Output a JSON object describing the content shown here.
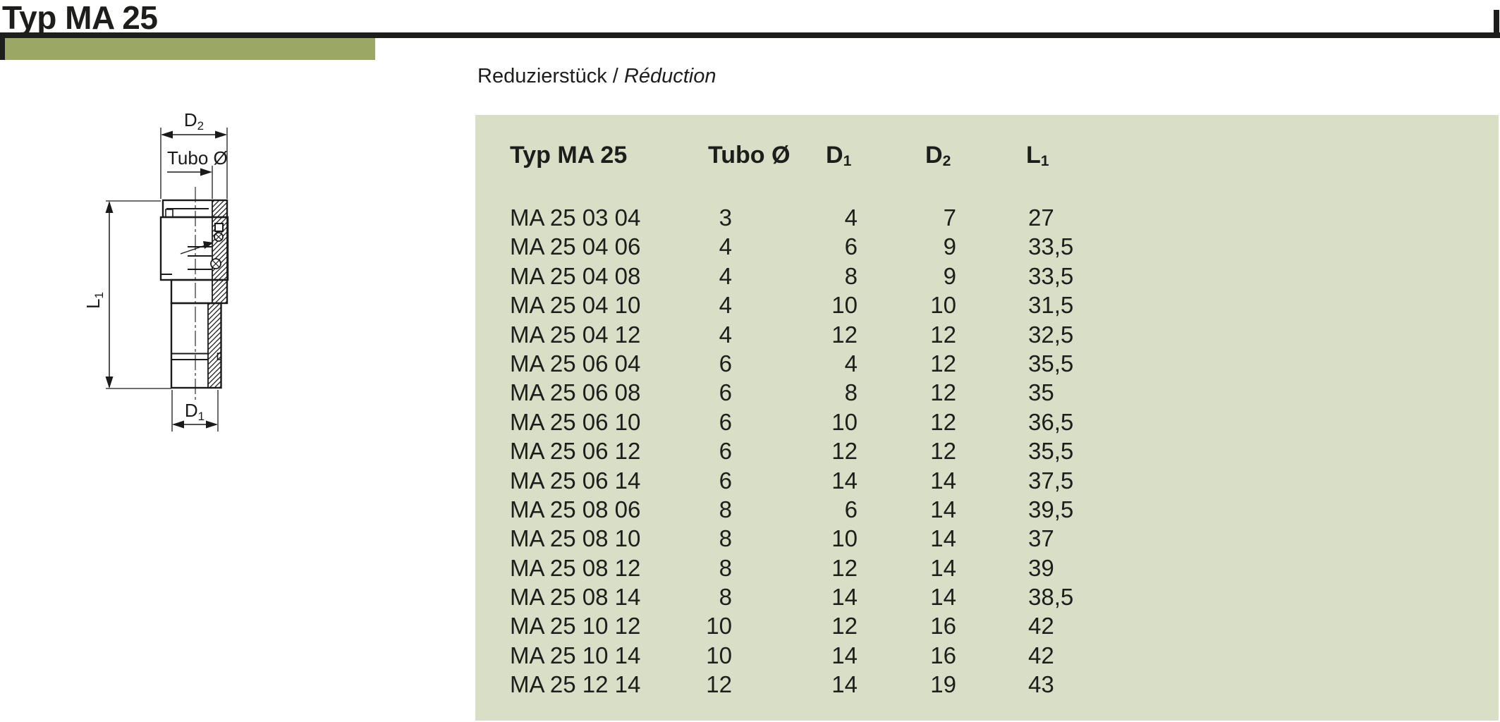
{
  "page": {
    "title": "Typ MA 25",
    "subtitle": {
      "de": "Reduzierstück",
      "sep": " / ",
      "fr": "Réduction"
    }
  },
  "colors": {
    "accent_olive": "#9aa765",
    "panel_green": "#d9dec7",
    "ink": "#1d1d1b"
  },
  "drawing": {
    "d2_label": {
      "base": "D",
      "sub": "2"
    },
    "tubo_label": "Tubo Ø",
    "l1_label": {
      "base": "L",
      "sub": "1"
    },
    "d1_label": {
      "base": "D",
      "sub": "1"
    }
  },
  "table": {
    "columns": [
      {
        "key": "name",
        "base": "Typ MA 25",
        "sub": ""
      },
      {
        "key": "tubo",
        "base": "Tubo Ø",
        "sub": ""
      },
      {
        "key": "d1",
        "base": "D",
        "sub": "1"
      },
      {
        "key": "d2",
        "base": "D",
        "sub": "2"
      },
      {
        "key": "l1",
        "base": "L",
        "sub": "1"
      }
    ],
    "rows": [
      {
        "name": "MA 25 03 04",
        "tubo": "3",
        "d1": "4",
        "d2": "7",
        "l1": "27"
      },
      {
        "name": "MA 25 04 06",
        "tubo": "4",
        "d1": "6",
        "d2": "9",
        "l1": "33,5"
      },
      {
        "name": "MA 25 04 08",
        "tubo": "4",
        "d1": "8",
        "d2": "9",
        "l1": "33,5"
      },
      {
        "name": "MA 25 04 10",
        "tubo": "4",
        "d1": "10",
        "d2": "10",
        "l1": "31,5"
      },
      {
        "name": "MA 25 04 12",
        "tubo": "4",
        "d1": "12",
        "d2": "12",
        "l1": "32,5"
      },
      {
        "name": "MA 25 06 04",
        "tubo": "6",
        "d1": "4",
        "d2": "12",
        "l1": "35,5"
      },
      {
        "name": "MA 25 06 08",
        "tubo": "6",
        "d1": "8",
        "d2": "12",
        "l1": "35"
      },
      {
        "name": "MA 25 06 10",
        "tubo": "6",
        "d1": "10",
        "d2": "12",
        "l1": "36,5"
      },
      {
        "name": "MA 25 06 12",
        "tubo": "6",
        "d1": "12",
        "d2": "12",
        "l1": "35,5"
      },
      {
        "name": "MA 25 06 14",
        "tubo": "6",
        "d1": "14",
        "d2": "14",
        "l1": "37,5"
      },
      {
        "name": "MA 25 08 06",
        "tubo": "8",
        "d1": "6",
        "d2": "14",
        "l1": "39,5"
      },
      {
        "name": "MA 25 08 10",
        "tubo": "8",
        "d1": "10",
        "d2": "14",
        "l1": "37"
      },
      {
        "name": "MA 25 08 12",
        "tubo": "8",
        "d1": "12",
        "d2": "14",
        "l1": "39"
      },
      {
        "name": "MA 25 08 14",
        "tubo": "8",
        "d1": "14",
        "d2": "14",
        "l1": "38,5"
      },
      {
        "name": "MA 25 10 12",
        "tubo": "10",
        "d1": "12",
        "d2": "16",
        "l1": "42"
      },
      {
        "name": "MA 25 10 14",
        "tubo": "10",
        "d1": "14",
        "d2": "16",
        "l1": "42"
      },
      {
        "name": "MA 25 12 14",
        "tubo": "12",
        "d1": "14",
        "d2": "19",
        "l1": "43"
      }
    ]
  }
}
